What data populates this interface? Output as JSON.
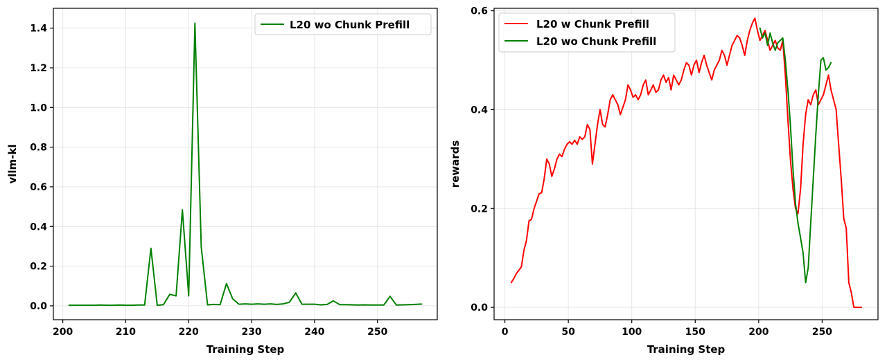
{
  "chart_data": [
    {
      "type": "line",
      "title": "",
      "xlabel": "Training Step",
      "ylabel": "vllm-kl",
      "xlim": [
        198.5,
        259.5
      ],
      "ylim": [
        -0.07,
        1.5
      ],
      "xticks": [
        200,
        210,
        220,
        230,
        240,
        250
      ],
      "yticks": [
        0.0,
        0.2,
        0.4,
        0.6,
        0.8,
        1.0,
        1.2,
        1.4
      ],
      "grid": true,
      "legend_position": "upper-right",
      "series": [
        {
          "name": "L20 wo Chunk Prefill",
          "color": "#008000",
          "x": [
            201,
            202,
            203,
            204,
            205,
            206,
            207,
            208,
            209,
            210,
            211,
            212,
            213,
            214,
            215,
            216,
            217,
            218,
            219,
            220,
            221,
            222,
            223,
            224,
            225,
            226,
            227,
            228,
            229,
            230,
            231,
            232,
            233,
            234,
            235,
            236,
            237,
            238,
            239,
            240,
            241,
            242,
            243,
            244,
            245,
            246,
            247,
            248,
            249,
            250,
            251,
            252,
            253,
            254,
            255,
            256,
            257
          ],
          "y": [
            0.003,
            0.003,
            0.003,
            0.003,
            0.003,
            0.004,
            0.003,
            0.003,
            0.004,
            0.003,
            0.003,
            0.004,
            0.004,
            0.29,
            0.003,
            0.006,
            0.058,
            0.05,
            0.484,
            0.05,
            1.425,
            0.297,
            0.005,
            0.007,
            0.006,
            0.112,
            0.035,
            0.008,
            0.01,
            0.008,
            0.01,
            0.008,
            0.01,
            0.007,
            0.01,
            0.018,
            0.065,
            0.008,
            0.008,
            0.008,
            0.005,
            0.007,
            0.025,
            0.006,
            0.006,
            0.005,
            0.004,
            0.005,
            0.004,
            0.004,
            0.004,
            0.048,
            0.004,
            0.005,
            0.006,
            0.007,
            0.009
          ]
        }
      ]
    },
    {
      "type": "line",
      "title": "",
      "xlabel": "Training Step",
      "ylabel": "rewards",
      "xlim": [
        -8.5,
        294
      ],
      "ylim": [
        -0.025,
        0.605
      ],
      "xticks": [
        0,
        50,
        100,
        150,
        200,
        250
      ],
      "yticks": [
        0.0,
        0.2,
        0.4,
        0.6
      ],
      "grid": true,
      "legend_position": "upper-left",
      "series": [
        {
          "name": "L20 w Chunk Prefill",
          "color": "#ff0000",
          "x": [
            5,
            7,
            9,
            11,
            13,
            15,
            17,
            19,
            21,
            23,
            25,
            27,
            29,
            31,
            33,
            35,
            37,
            39,
            41,
            43,
            45,
            47,
            49,
            51,
            53,
            55,
            57,
            59,
            61,
            63,
            65,
            67,
            69,
            71,
            73,
            75,
            77,
            79,
            81,
            83,
            85,
            87,
            89,
            91,
            93,
            95,
            97,
            99,
            101,
            103,
            105,
            107,
            109,
            111,
            113,
            115,
            117,
            119,
            121,
            123,
            125,
            127,
            129,
            131,
            133,
            135,
            137,
            139,
            141,
            143,
            145,
            147,
            149,
            151,
            153,
            155,
            157,
            159,
            161,
            163,
            165,
            167,
            169,
            171,
            173,
            175,
            177,
            179,
            181,
            183,
            185,
            187,
            189,
            191,
            193,
            195,
            197,
            199,
            201,
            203,
            205,
            207,
            209,
            211,
            213,
            215,
            217,
            219,
            221,
            223,
            225,
            227,
            229,
            231,
            233,
            235,
            237,
            239,
            241,
            243,
            245,
            247,
            249,
            251,
            253,
            255,
            257,
            259,
            261,
            263,
            265,
            267,
            269,
            271,
            273,
            275,
            277,
            279,
            281
          ],
          "y": [
            0.05,
            0.058,
            0.068,
            0.075,
            0.082,
            0.115,
            0.135,
            0.175,
            0.178,
            0.2,
            0.215,
            0.23,
            0.232,
            0.26,
            0.3,
            0.29,
            0.265,
            0.28,
            0.3,
            0.31,
            0.305,
            0.32,
            0.33,
            0.335,
            0.33,
            0.338,
            0.33,
            0.345,
            0.34,
            0.345,
            0.37,
            0.36,
            0.29,
            0.33,
            0.37,
            0.4,
            0.37,
            0.365,
            0.39,
            0.42,
            0.43,
            0.42,
            0.41,
            0.39,
            0.405,
            0.42,
            0.45,
            0.44,
            0.425,
            0.43,
            0.42,
            0.43,
            0.45,
            0.46,
            0.43,
            0.44,
            0.45,
            0.435,
            0.44,
            0.46,
            0.47,
            0.455,
            0.465,
            0.44,
            0.47,
            0.46,
            0.45,
            0.46,
            0.48,
            0.495,
            0.49,
            0.47,
            0.49,
            0.5,
            0.475,
            0.495,
            0.51,
            0.49,
            0.475,
            0.46,
            0.48,
            0.49,
            0.5,
            0.52,
            0.51,
            0.49,
            0.51,
            0.53,
            0.54,
            0.55,
            0.545,
            0.53,
            0.51,
            0.54,
            0.56,
            0.575,
            0.585,
            0.56,
            0.54,
            0.55,
            0.56,
            0.54,
            0.52,
            0.53,
            0.54,
            0.525,
            0.52,
            0.54,
            0.47,
            0.38,
            0.3,
            0.24,
            0.2,
            0.19,
            0.24,
            0.33,
            0.39,
            0.42,
            0.41,
            0.43,
            0.44,
            0.41,
            0.42,
            0.43,
            0.45,
            0.47,
            0.44,
            0.42,
            0.4,
            0.33,
            0.26,
            0.18,
            0.16,
            0.05,
            0.03,
            0.0,
            0.0,
            0.0,
            0.0
          ]
        },
        {
          "name": "L20 wo Chunk Prefill",
          "color": "#008000",
          "x": [
            201,
            203,
            205,
            207,
            209,
            211,
            213,
            215,
            217,
            219,
            221,
            223,
            225,
            227,
            229,
            231,
            233,
            235,
            237,
            239,
            241,
            243,
            245,
            247,
            249,
            251,
            253,
            255,
            257
          ],
          "y": [
            0.565,
            0.545,
            0.555,
            0.53,
            0.555,
            0.535,
            0.52,
            0.535,
            0.54,
            0.545,
            0.5,
            0.44,
            0.37,
            0.28,
            0.21,
            0.17,
            0.14,
            0.11,
            0.05,
            0.08,
            0.17,
            0.26,
            0.35,
            0.43,
            0.5,
            0.505,
            0.48,
            0.485,
            0.495
          ]
        }
      ]
    }
  ]
}
